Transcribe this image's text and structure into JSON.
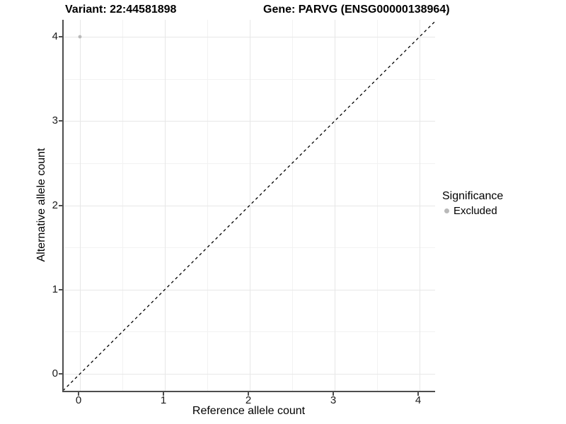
{
  "header": {
    "variant_title": "Variant: 22:44581898",
    "gene_title": "Gene: PARVG (ENSG00000138964)"
  },
  "legend": {
    "title": "Significance",
    "items": [
      {
        "label": "Excluded",
        "color": "#b9b9b9"
      }
    ]
  },
  "chart_data": {
    "type": "scatter",
    "title": "Variant: 22:44581898   Gene: PARVG (ENSG00000138964)",
    "xlabel": "Reference allele count",
    "ylabel": "Alternative allele count",
    "xlim": [
      -0.2,
      4.2
    ],
    "ylim": [
      -0.2,
      4.2
    ],
    "x_ticks": [
      0,
      1,
      2,
      3,
      4
    ],
    "y_ticks": [
      0,
      1,
      2,
      3,
      4
    ],
    "grid": true,
    "minor_grid": true,
    "legend_position": "right",
    "series": [
      {
        "name": "Excluded",
        "color": "#b9b9b9",
        "points": [
          {
            "x": 0,
            "y": 4
          }
        ]
      }
    ],
    "reference_line": {
      "slope": 1,
      "intercept": 0,
      "style": "dashed",
      "color": "#000000"
    },
    "colors": {
      "major_grid": "#e7e7e7",
      "minor_grid": "#f2f2f2",
      "axis_line": "#4d4d4d",
      "point": "#b9b9b9"
    }
  }
}
